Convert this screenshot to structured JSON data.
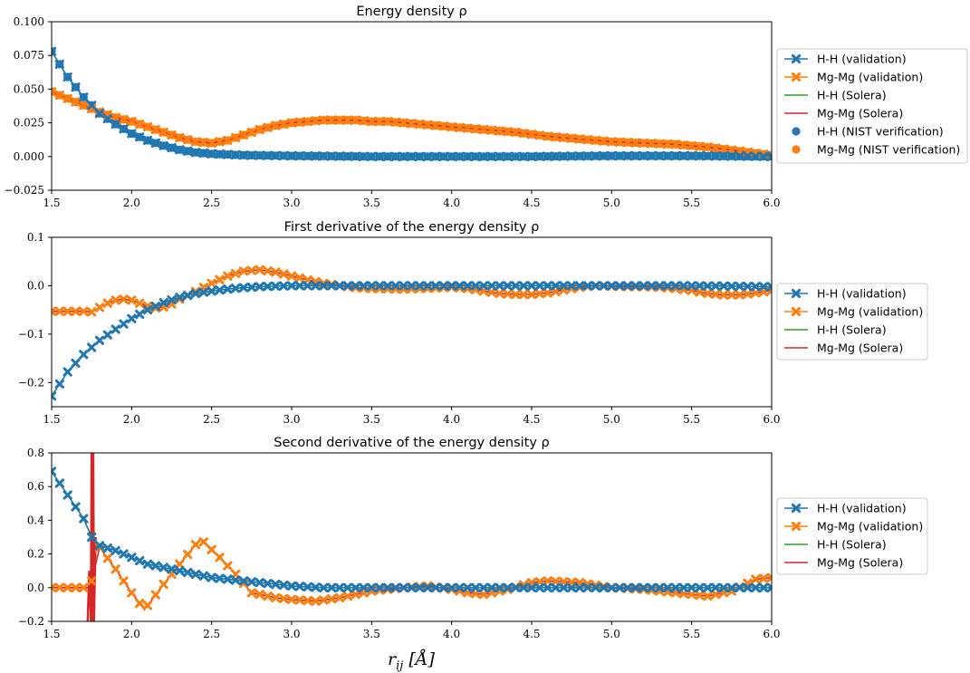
{
  "colors": {
    "hh": "#1f77b4",
    "mgmg": "#ff7f0e",
    "hh_solera": "#2ca02c",
    "mgmg_solera": "#d62728"
  },
  "xlabel": "r_ij [Å]",
  "chart_data": [
    {
      "type": "line",
      "title": "Energy density ρ",
      "xlim": [
        1.5,
        6.0
      ],
      "ylim": [
        -0.025,
        0.1
      ],
      "xticks": [
        "1.5",
        "2.0",
        "2.5",
        "3.0",
        "3.5",
        "4.0",
        "4.5",
        "5.0",
        "5.5",
        "6.0"
      ],
      "yticks": [
        "−0.025",
        "0.000",
        "0.025",
        "0.050",
        "0.075",
        "0.100"
      ],
      "ytick_values": [
        -0.025,
        0.0,
        0.025,
        0.05,
        0.075,
        0.1
      ],
      "legend": [
        "H-H (validation)",
        "Mg-Mg (validation)",
        "H-H (Solera)",
        "Mg-Mg (Solera)",
        "H-H (NIST verification)",
        "Mg-Mg (NIST verification)"
      ],
      "legend_location": "outside-right-top",
      "series": [
        {
          "name": "H-H (Solera)",
          "kind": "line",
          "x": [
            1.5,
            1.6,
            1.7,
            1.8,
            1.9,
            2.0,
            2.1,
            2.2,
            2.3,
            2.4,
            2.5,
            2.7,
            3.0,
            3.5,
            4.0,
            4.5,
            5.0,
            5.5,
            6.0
          ],
          "y": [
            0.078,
            0.059,
            0.044,
            0.032,
            0.024,
            0.017,
            0.012,
            0.008,
            0.005,
            0.003,
            0.002,
            0.001,
            0.0005,
            0.0,
            0.0,
            0.0,
            0.0005,
            0.0005,
            0.0
          ]
        },
        {
          "name": "Mg-Mg (Solera)",
          "kind": "line",
          "x": [
            1.5,
            1.6,
            1.7,
            1.8,
            1.9,
            2.0,
            2.1,
            2.2,
            2.3,
            2.4,
            2.5,
            2.6,
            2.7,
            2.8,
            2.9,
            3.0,
            3.1,
            3.2,
            3.3,
            3.4,
            3.5,
            3.6,
            3.7,
            3.8,
            3.9,
            4.0,
            4.2,
            4.4,
            4.6,
            4.8,
            5.0,
            5.2,
            5.4,
            5.6,
            5.8,
            6.0
          ],
          "y": [
            0.048,
            0.043,
            0.038,
            0.033,
            0.029,
            0.026,
            0.022,
            0.018,
            0.014,
            0.011,
            0.01,
            0.012,
            0.016,
            0.02,
            0.023,
            0.025,
            0.026,
            0.027,
            0.027,
            0.027,
            0.026,
            0.026,
            0.025,
            0.024,
            0.023,
            0.022,
            0.02,
            0.018,
            0.015,
            0.013,
            0.011,
            0.01,
            0.009,
            0.007,
            0.004,
            0.001
          ]
        }
      ]
    },
    {
      "type": "line",
      "title": "First derivative of the energy density ρ",
      "xlim": [
        1.5,
        6.0
      ],
      "ylim": [
        -0.25,
        0.1
      ],
      "xticks": [
        "1.5",
        "2.0",
        "2.5",
        "3.0",
        "3.5",
        "4.0",
        "4.5",
        "5.0",
        "5.5",
        "6.0"
      ],
      "yticks": [
        "−0.2",
        "−0.1",
        "0.0",
        "0.1"
      ],
      "ytick_values": [
        -0.2,
        -0.1,
        0.0,
        0.1
      ],
      "legend": [
        "H-H (validation)",
        "Mg-Mg (validation)",
        "H-H (Solera)",
        "Mg-Mg (Solera)"
      ],
      "legend_location": "outside-right",
      "series": [
        {
          "name": "H-H (Solera)",
          "kind": "line",
          "x": [
            1.5,
            1.6,
            1.7,
            1.8,
            1.9,
            2.0,
            2.1,
            2.2,
            2.3,
            2.4,
            2.5,
            2.6,
            2.7,
            2.8,
            2.9,
            3.0,
            3.2,
            3.5,
            4.0,
            4.5,
            5.0,
            5.5,
            6.0
          ],
          "y": [
            -0.228,
            -0.178,
            -0.142,
            -0.113,
            -0.09,
            -0.068,
            -0.05,
            -0.035,
            -0.024,
            -0.016,
            -0.011,
            -0.007,
            -0.004,
            -0.002,
            -0.001,
            0.0,
            0.0,
            0.0,
            0.0,
            0.0,
            0.0,
            0.0,
            -0.002
          ]
        },
        {
          "name": "Mg-Mg (Solera)",
          "kind": "line",
          "x": [
            1.5,
            1.6,
            1.7,
            1.75,
            1.8,
            1.85,
            1.9,
            1.95,
            2.0,
            2.05,
            2.1,
            2.15,
            2.2,
            2.25,
            2.3,
            2.4,
            2.5,
            2.6,
            2.7,
            2.8,
            2.9,
            3.0,
            3.1,
            3.2,
            3.3,
            3.4,
            3.5,
            3.7,
            3.9,
            4.0,
            4.1,
            4.2,
            4.3,
            4.4,
            4.5,
            4.6,
            4.7,
            4.8,
            4.9,
            5.0,
            5.1,
            5.2,
            5.3,
            5.4,
            5.5,
            5.6,
            5.7,
            5.8,
            5.9,
            6.0
          ],
          "y": [
            -0.053,
            -0.053,
            -0.053,
            -0.054,
            -0.045,
            -0.036,
            -0.03,
            -0.028,
            -0.03,
            -0.036,
            -0.042,
            -0.046,
            -0.044,
            -0.038,
            -0.028,
            -0.012,
            0.005,
            0.02,
            0.03,
            0.033,
            0.028,
            0.02,
            0.012,
            0.005,
            0.0,
            -0.004,
            -0.006,
            -0.007,
            -0.005,
            -0.003,
            -0.006,
            -0.011,
            -0.016,
            -0.018,
            -0.018,
            -0.015,
            -0.009,
            -0.003,
            0.0,
            -0.001,
            -0.002,
            -0.002,
            -0.003,
            -0.006,
            -0.01,
            -0.016,
            -0.019,
            -0.019,
            -0.015,
            -0.01
          ]
        }
      ]
    },
    {
      "type": "line",
      "title": "Second derivative of the energy density ρ",
      "xlim": [
        1.5,
        6.0
      ],
      "ylim": [
        -0.2,
        0.8
      ],
      "xticks": [
        "1.5",
        "2.0",
        "2.5",
        "3.0",
        "3.5",
        "4.0",
        "4.5",
        "5.0",
        "5.5",
        "6.0"
      ],
      "yticks": [
        "−0.2",
        "0.0",
        "0.2",
        "0.4",
        "0.6",
        "0.8"
      ],
      "ytick_values": [
        -0.2,
        0.0,
        0.2,
        0.4,
        0.6,
        0.8
      ],
      "legend": [
        "H-H (validation)",
        "Mg-Mg (validation)",
        "H-H (Solera)",
        "Mg-Mg (Solera)"
      ],
      "legend_location": "outside-right",
      "series": [
        {
          "name": "H-H (Solera)",
          "kind": "line",
          "x": [
            1.5,
            1.6,
            1.7,
            1.75,
            1.8,
            1.9,
            2.0,
            2.1,
            2.2,
            2.3,
            2.4,
            2.5,
            2.6,
            2.7,
            2.8,
            2.9,
            3.0,
            3.2,
            3.5,
            4.0,
            4.5,
            5.0,
            5.5,
            6.0
          ],
          "y": [
            0.69,
            0.55,
            0.41,
            0.3,
            0.25,
            0.22,
            0.18,
            0.14,
            0.12,
            0.1,
            0.08,
            0.06,
            0.05,
            0.04,
            0.03,
            0.02,
            0.01,
            0.0,
            0.0,
            0.0,
            0.0,
            0.0,
            0.0,
            0.0
          ]
        },
        {
          "name": "Mg-Mg (Solera)",
          "kind": "line",
          "x": [
            1.5,
            1.6,
            1.7,
            1.74,
            1.8,
            1.9,
            1.95,
            2.0,
            2.08,
            2.2,
            2.3,
            2.43,
            2.55,
            2.65,
            2.75,
            2.9,
            3.0,
            3.15,
            3.3,
            3.5,
            3.7,
            3.85,
            4.0,
            4.1,
            4.2,
            4.35,
            4.5,
            4.6,
            4.8,
            5.0,
            5.2,
            5.4,
            5.5,
            5.6,
            5.75,
            5.9,
            6.0
          ],
          "y": [
            0.0,
            0.0,
            0.0,
            0.0,
            0.24,
            0.11,
            0.04,
            -0.03,
            -0.13,
            0.02,
            0.14,
            0.29,
            0.18,
            0.08,
            -0.03,
            -0.06,
            -0.07,
            -0.08,
            -0.06,
            -0.02,
            0.0,
            0.01,
            -0.01,
            -0.03,
            -0.04,
            -0.01,
            0.03,
            0.04,
            0.03,
            0.0,
            -0.01,
            -0.03,
            -0.04,
            -0.05,
            -0.02,
            0.05,
            0.06
          ]
        },
        {
          "name": "Mg-Mg (Solera) spike",
          "kind": "spike",
          "x": [
            1.725,
            1.735,
            1.745,
            1.75,
            1.755,
            1.76,
            1.765,
            1.775
          ],
          "y": [
            -0.2,
            0.1,
            -0.2,
            0.85,
            -0.2,
            0.85,
            -0.2,
            0.3
          ]
        }
      ]
    }
  ]
}
